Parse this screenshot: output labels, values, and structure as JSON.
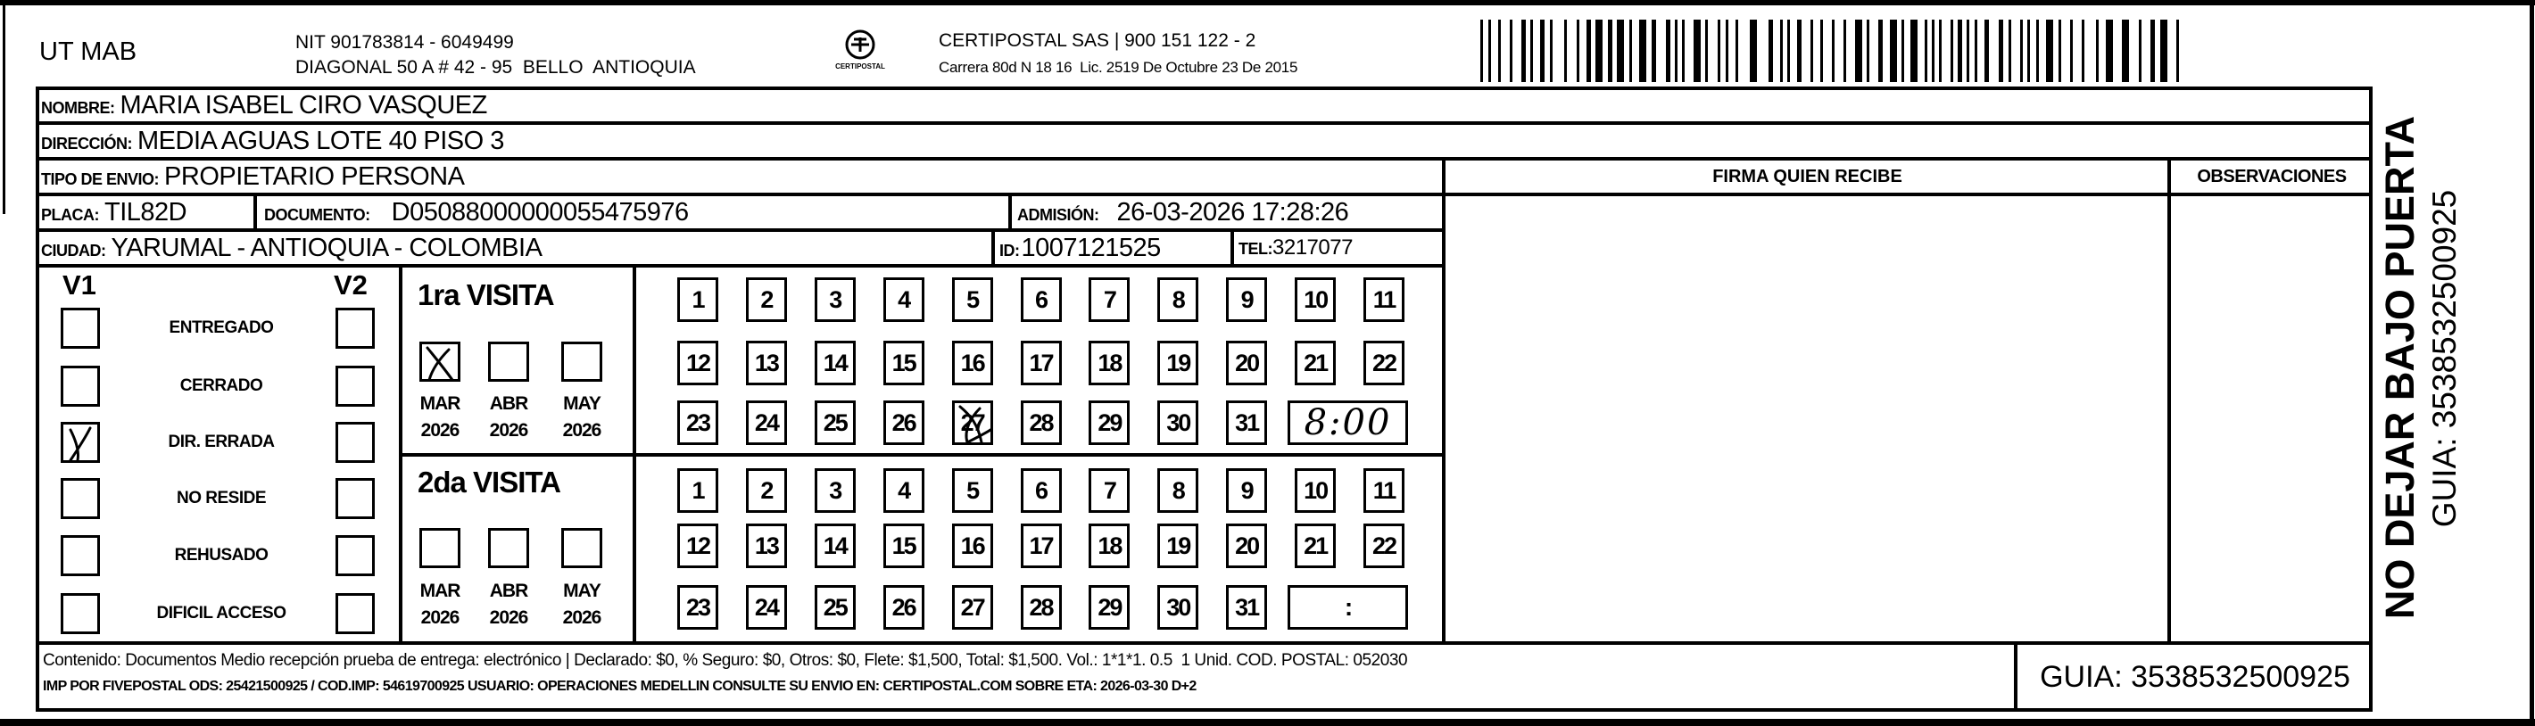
{
  "header": {
    "company": "UT MAB",
    "nit": "NIT 901783814 - 6049499",
    "address": "DIAGONAL 50 A # 42 - 95  BELLO  ANTIOQUIA",
    "logo_text": "CERTIPOSTAL",
    "carrier": "CERTIPOSTAL SAS | 900 151 122 - 2",
    "license": "Carrera 80d N 18 16  Lic. 2519 De Octubre 23 De 2015"
  },
  "recipient": {
    "nombre_label": "NOMBRE:",
    "nombre": "MARIA ISABEL CIRO VASQUEZ",
    "direccion_label": "DIRECCIÓN:",
    "direccion": "MEDIA AGUAS LOTE 40 PISO 3",
    "tipo_envio_label": "TIPO DE ENVIO:",
    "tipo_envio": "PROPIETARIO PERSONA",
    "placa_label": "PLACA:",
    "placa": "TIL82D",
    "documento_label": "DOCUMENTO:",
    "documento": "D05088000000055475976",
    "admision_label": "ADMISIÓN:",
    "admision": "26-03-2026 17:28:26",
    "ciudad_label": "CIUDAD:",
    "ciudad": "YARUMAL - ANTIOQUIA - COLOMBIA",
    "id_label": "ID:",
    "id": "1007121525",
    "tel_label": "TEL:",
    "tel": "3217077"
  },
  "signature": {
    "firma_header": "FIRMA QUIEN RECIBE",
    "observaciones_header": "OBSERVACIONES"
  },
  "status": {
    "v1_label": "V1",
    "v2_label": "V2",
    "options": [
      {
        "label": "ENTREGADO",
        "v1": false,
        "v2": false
      },
      {
        "label": "CERRADO",
        "v1": false,
        "v2": false
      },
      {
        "label": "DIR. ERRADA",
        "v1": true,
        "v2": false
      },
      {
        "label": "NO RESIDE",
        "v1": false,
        "v2": false
      },
      {
        "label": "REHUSADO",
        "v1": false,
        "v2": false
      },
      {
        "label": "DIFICIL ACCESO",
        "v1": false,
        "v2": false
      }
    ]
  },
  "visits": [
    {
      "title": "1ra VISITA",
      "months": [
        {
          "month": "MAR",
          "year": "2026",
          "checked": true
        },
        {
          "month": "ABR",
          "year": "2026",
          "checked": false
        },
        {
          "month": "MAY",
          "year": "2026",
          "checked": false
        }
      ],
      "days": [
        "1",
        "2",
        "3",
        "4",
        "5",
        "6",
        "7",
        "8",
        "9",
        "10",
        "11",
        "12",
        "13",
        "14",
        "15",
        "16",
        "17",
        "18",
        "19",
        "20",
        "21",
        "22",
        "23",
        "24",
        "25",
        "26",
        "27",
        "28",
        "29",
        "30",
        "31"
      ],
      "marked_day": "27",
      "time": "8:00"
    },
    {
      "title": "2da VISITA",
      "months": [
        {
          "month": "MAR",
          "year": "2026",
          "checked": false
        },
        {
          "month": "ABR",
          "year": "2026",
          "checked": false
        },
        {
          "month": "MAY",
          "year": "2026",
          "checked": false
        }
      ],
      "days": [
        "1",
        "2",
        "3",
        "4",
        "5",
        "6",
        "7",
        "8",
        "9",
        "10",
        "11",
        "12",
        "13",
        "14",
        "15",
        "16",
        "17",
        "18",
        "19",
        "20",
        "21",
        "22",
        "23",
        "24",
        "25",
        "26",
        "27",
        "28",
        "29",
        "30",
        "31"
      ],
      "marked_day": null,
      "time": ":"
    }
  ],
  "footer": {
    "line1": "Contenido: Documentos Medio recepción prueba de entrega: electrónico | Declarado: $0, % Seguro: $0, Otros: $0, Flete: $1,500, Total: $1,500. Vol.: 1*1*1. 0.5  1 Unid. COD. POSTAL: 052030",
    "line2": "IMP POR FIVEPOSTAL ODS: 25421500925 / COD.IMP: 54619700925 USUARIO: OPERACIONES MEDELLIN CONSULTE SU ENVIO EN: CERTIPOSTAL.COM SOBRE ETA: 2026-03-30 D+2",
    "guia": "GUIA: 3538532500925"
  },
  "side": {
    "warning": "NO DEJAR BAJO PUERTA",
    "guia": "GUIA: 3538532500925"
  }
}
